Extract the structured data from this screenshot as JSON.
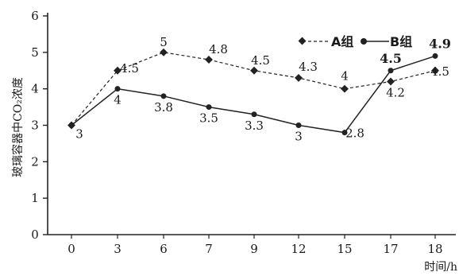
{
  "chart_data": {
    "type": "line",
    "x": [
      0,
      3,
      6,
      7,
      9,
      12,
      15,
      17,
      18
    ],
    "xlabel": "时间/h",
    "ylabel": "玻璃容器中CO₂浓度",
    "ylim": [
      0,
      6
    ],
    "yticks": [
      0,
      1,
      2,
      3,
      4,
      5,
      6
    ],
    "grid": false,
    "legend_position": "top-right",
    "series": [
      {
        "name": "A组",
        "style": "dashed",
        "marker": "diamond",
        "values": [
          3,
          4.5,
          5,
          4.8,
          4.5,
          4.3,
          4,
          4.2,
          4.5
        ],
        "labels": [
          "3",
          "4.5",
          "5",
          "4.8",
          "4.5",
          "4.3",
          "4",
          "4.2",
          "4.5"
        ]
      },
      {
        "name": "B组",
        "style": "solid",
        "marker": "dot",
        "values": [
          3,
          4,
          3.8,
          3.5,
          3.3,
          3,
          2.8,
          4.5,
          4.9
        ],
        "labels": [
          "3",
          "4",
          "3.8",
          "3.5",
          "3.3",
          "3",
          "2.8",
          "4.5",
          "4.9"
        ]
      }
    ]
  }
}
